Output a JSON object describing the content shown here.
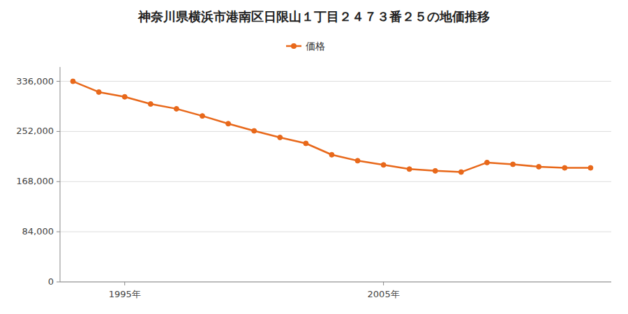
{
  "chart_data": {
    "type": "line",
    "title": "神奈川県横浜市港南区日限山１丁目２４７３番２５の地価推移",
    "x": [
      1993,
      1994,
      1995,
      1996,
      1997,
      1998,
      1999,
      2000,
      2001,
      2002,
      2003,
      2004,
      2005,
      2006,
      2007,
      2008,
      2009,
      2010,
      2011,
      2012,
      2013
    ],
    "series": [
      {
        "name": "価格",
        "color": "#E8681A",
        "marker": "circle",
        "values": [
          336000,
          318000,
          310000,
          298000,
          290000,
          278000,
          265000,
          253000,
          242000,
          232000,
          213000,
          203000,
          196000,
          189000,
          186000,
          184000,
          200000,
          197000,
          193000,
          191000,
          191000
        ]
      }
    ],
    "xlim": [
      1992.5,
      2013.8
    ],
    "xticks": [
      {
        "value": 1995,
        "label": "1995年"
      },
      {
        "value": 2005,
        "label": "2005年"
      }
    ],
    "ylim": [
      0,
      360000
    ],
    "yticks": [
      0,
      {
        "value": 84000,
        "label": "84,000"
      },
      {
        "value": 168000,
        "label": "168,000"
      },
      {
        "value": 252000,
        "label": "252,000"
      },
      {
        "value": 336000,
        "label": "336,000"
      }
    ],
    "grid": "y",
    "legend": "top"
  }
}
